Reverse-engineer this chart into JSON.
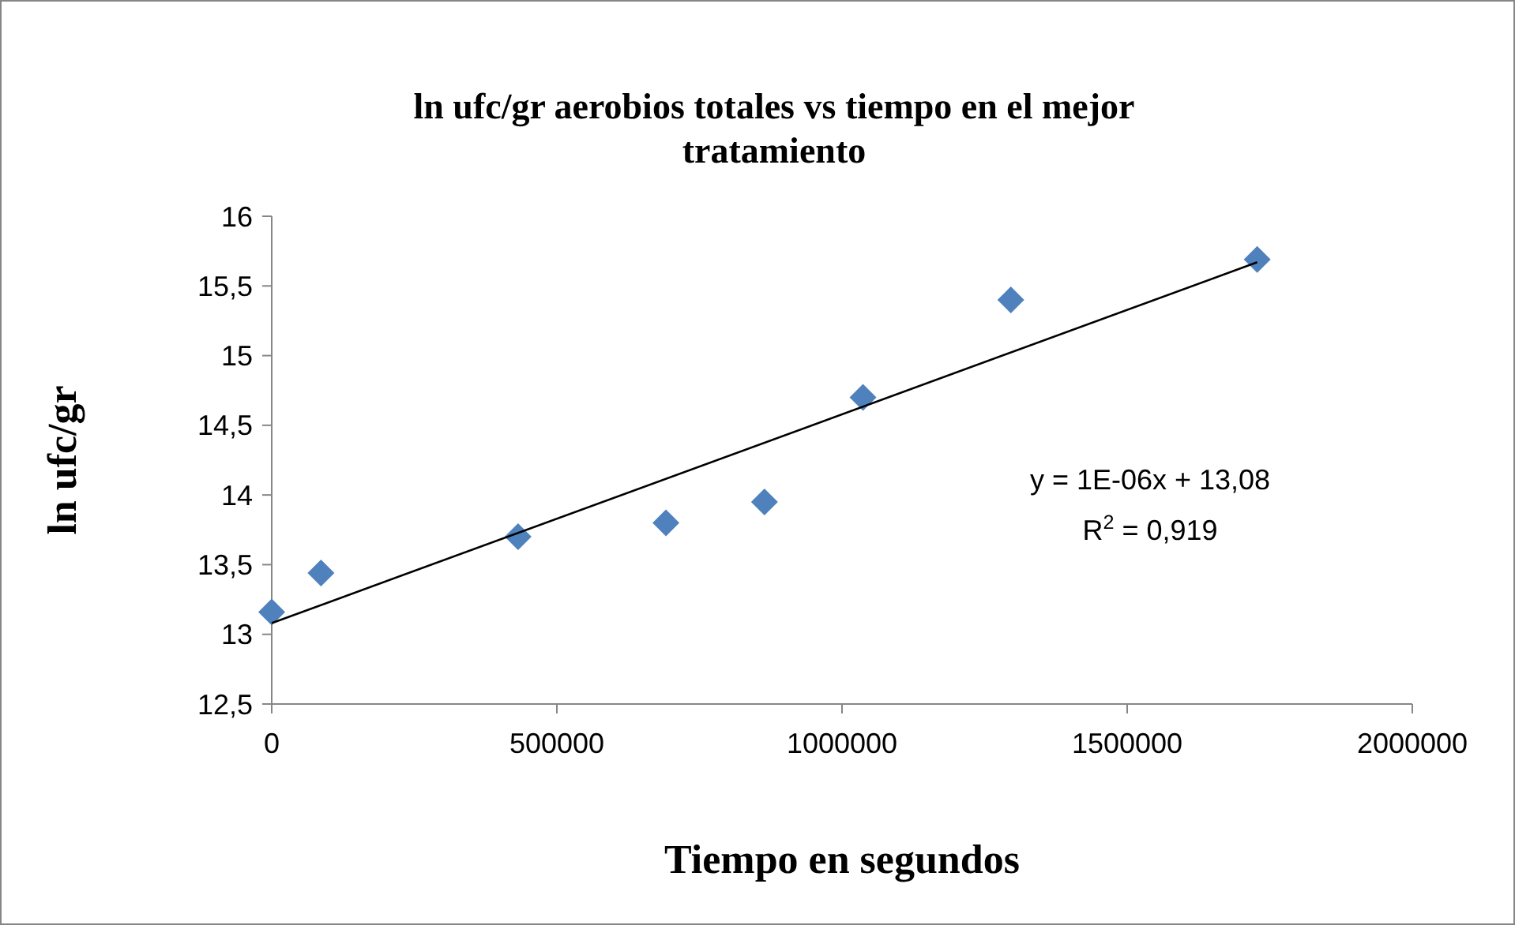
{
  "chart_data": {
    "type": "scatter",
    "title": "ln ufc/gr aerobios totales vs tiempo en el mejor tratamiento",
    "xlabel": "Tiempo en segundos",
    "ylabel": "ln ufc/gr",
    "x": [
      0,
      86400,
      432000,
      691200,
      864000,
      1036800,
      1296000,
      1728000
    ],
    "series": [
      {
        "color": "#4f81bd",
        "marker": "diamond",
        "values": [
          13.16,
          13.44,
          13.7,
          13.8,
          13.95,
          14.7,
          15.4,
          15.69
        ]
      },
      {
        "type": "line",
        "marker": "none",
        "color": "#000000",
        "x": [
          0,
          1728000
        ],
        "values": [
          13.08,
          15.67
        ]
      }
    ],
    "xlim": [
      0,
      2000000
    ],
    "xticks": [
      0,
      500000,
      1000000,
      1500000,
      2000000
    ],
    "ylim": [
      12.5,
      16
    ],
    "yticks": [
      {
        "value": 12.5,
        "label": "12,5"
      },
      13,
      {
        "value": 13.5,
        "label": "13,5"
      },
      14,
      {
        "value": 14.5,
        "label": "14,5"
      },
      15,
      {
        "value": 15.5,
        "label": "15,5"
      },
      16
    ],
    "annotations": [
      "y = 1E-06x + 13,08",
      "R$^{2}$ = 0,919"
    ],
    "grid": false
  }
}
